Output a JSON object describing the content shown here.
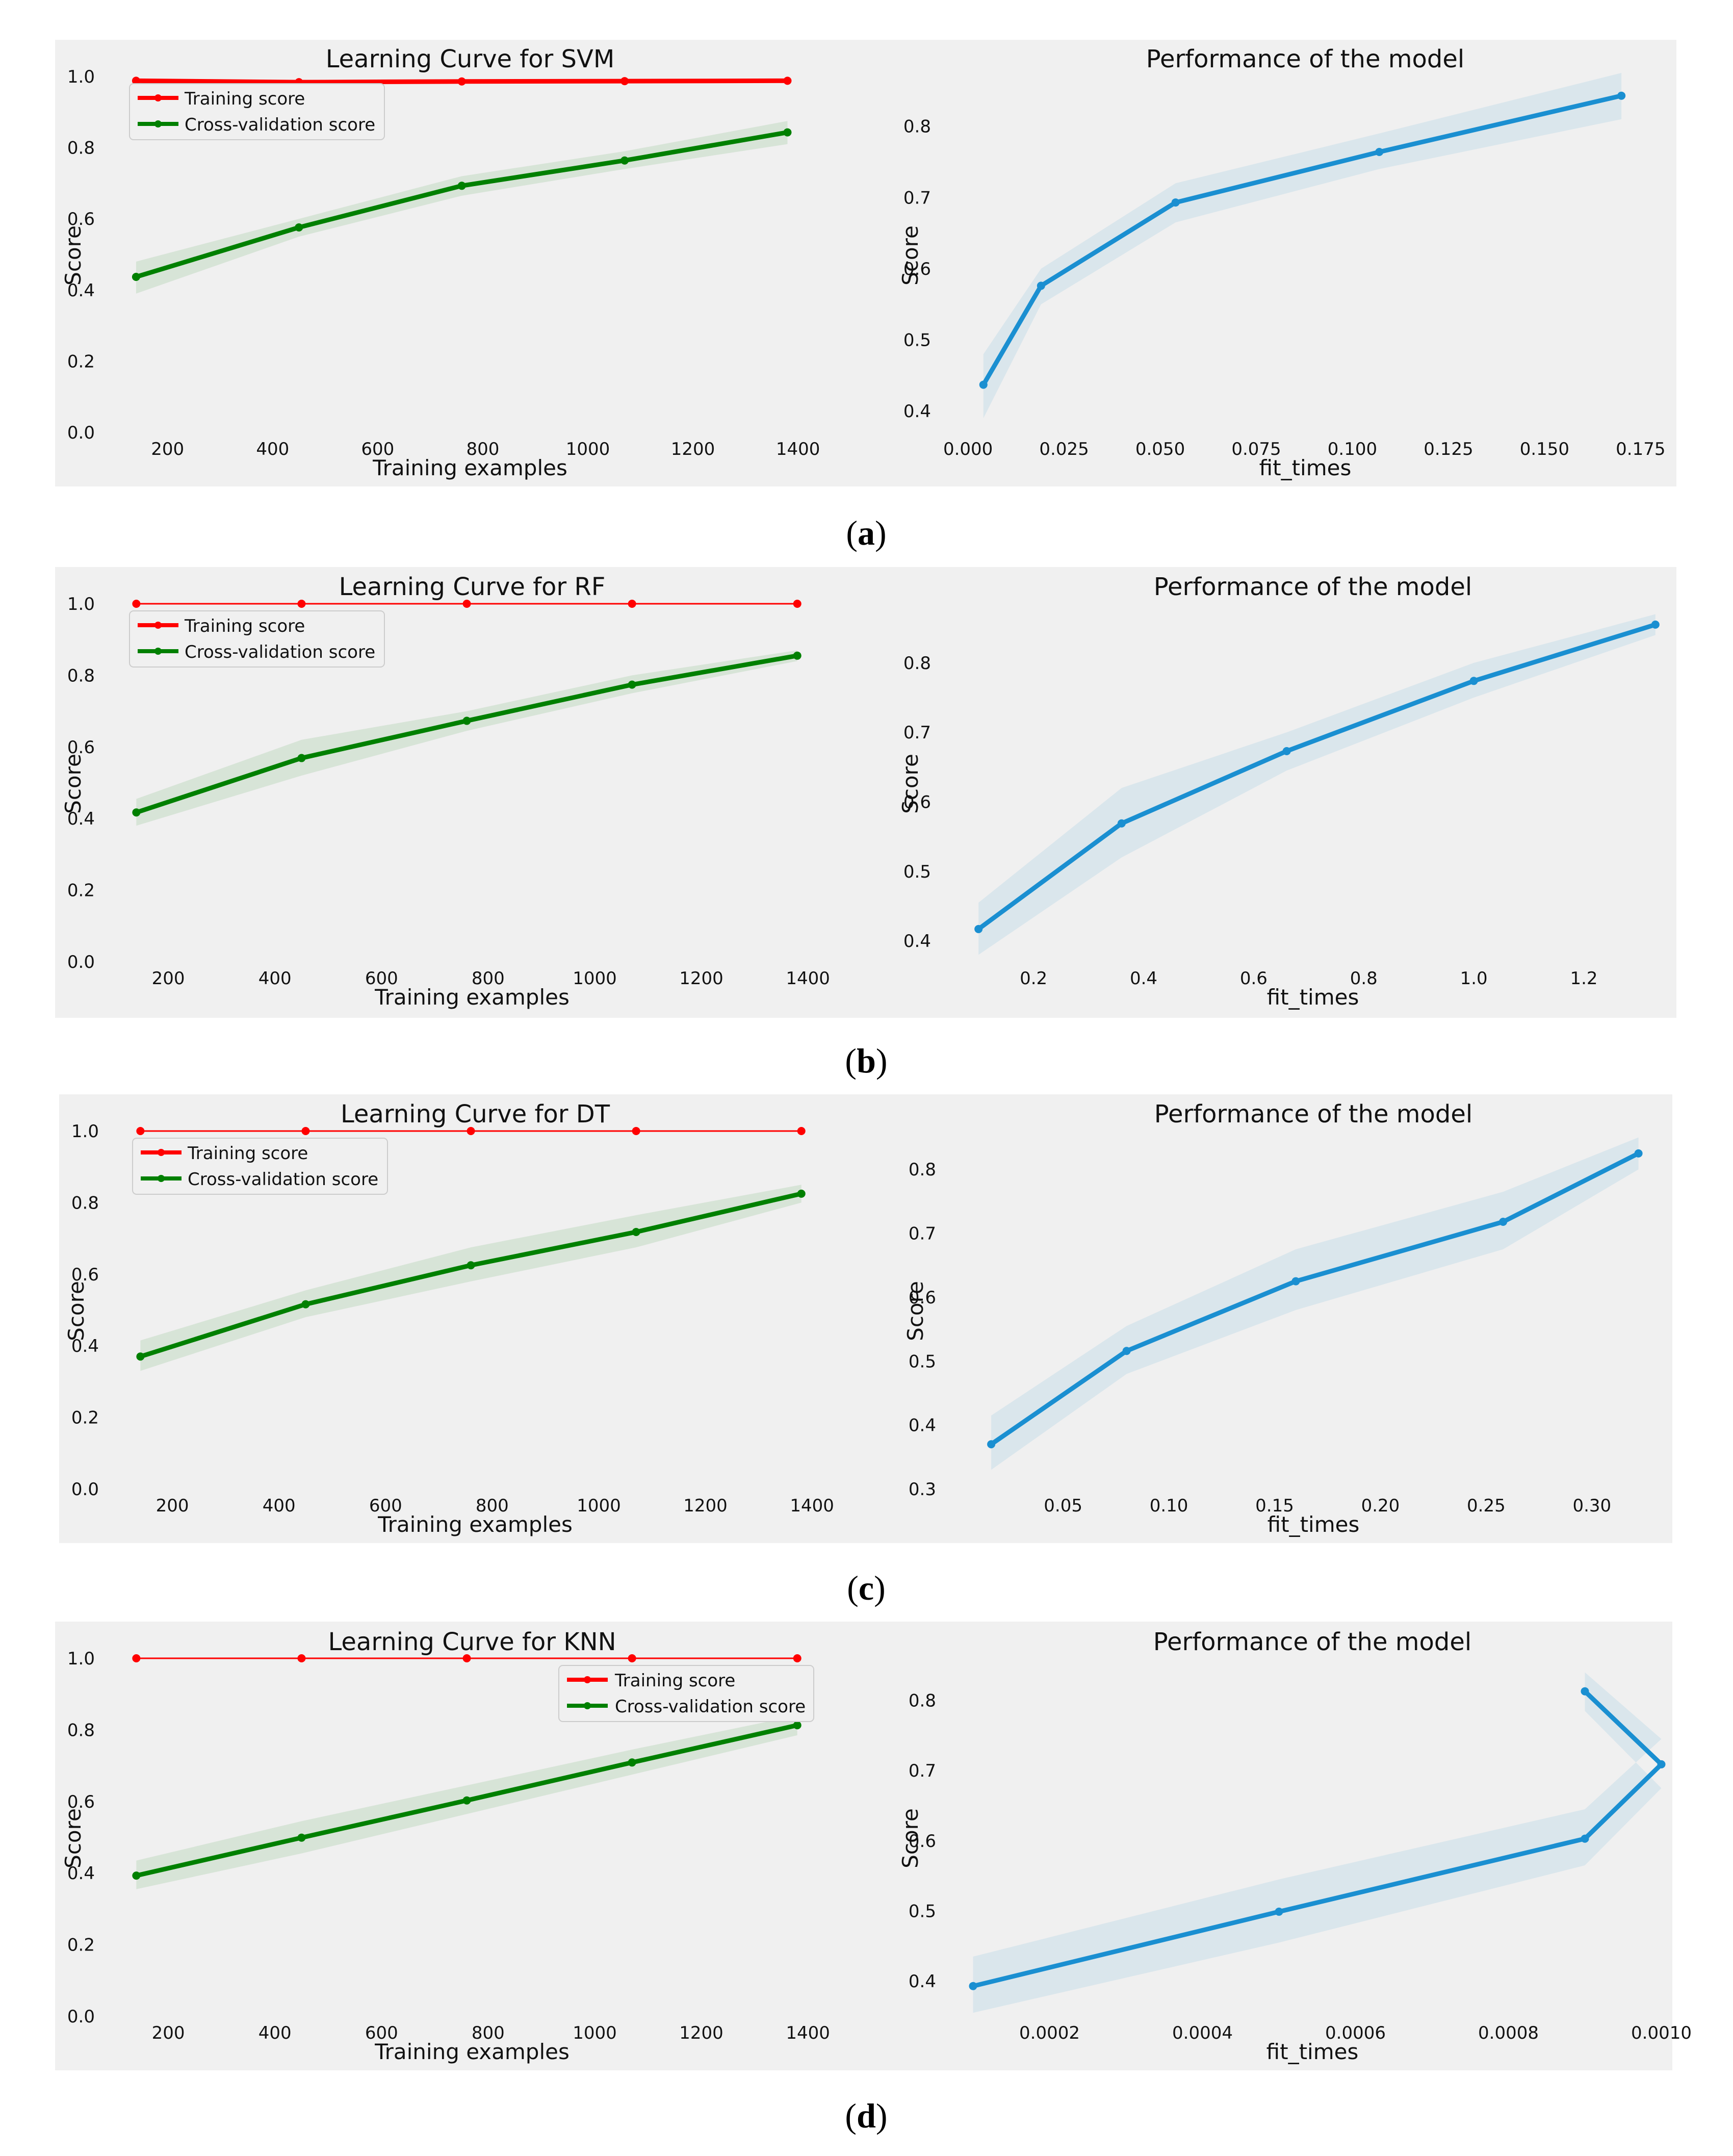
{
  "colors": {
    "panel_bg": "#f0f0f0",
    "training": "#ff0000",
    "cv": "#008000",
    "perf": "#1a8fd1",
    "cv_band": "#008000",
    "perf_band": "#1a8fd1"
  },
  "panels": [
    {
      "caption": "a",
      "left": {
        "title": "Learning Curve for SVM",
        "xlabel": "Training examples",
        "ylabel": "Score",
        "legend": [
          "Training score",
          "Cross-validation score"
        ],
        "legend_position": "top-left"
      },
      "right": {
        "title": "Performance of the model",
        "xlabel": "fit_times",
        "ylabel": "Score"
      }
    },
    {
      "caption": "b",
      "left": {
        "title": "Learning Curve for RF",
        "xlabel": "Training examples",
        "ylabel": "Score",
        "legend": [
          "Training score",
          "Cross-validation score"
        ],
        "legend_position": "top-left"
      },
      "right": {
        "title": "Performance of the model",
        "xlabel": "fit_times",
        "ylabel": "Score"
      }
    },
    {
      "caption": "c",
      "left": {
        "title": "Learning Curve for DT",
        "xlabel": "Training examples",
        "ylabel": "Score",
        "legend": [
          "Training score",
          "Cross-validation score"
        ],
        "legend_position": "top-left"
      },
      "right": {
        "title": "Performance of the model",
        "xlabel": "fit_times",
        "ylabel": "Score"
      }
    },
    {
      "caption": "d",
      "left": {
        "title": "Learning Curve for KNN",
        "xlabel": "Training examples",
        "ylabel": "Score",
        "legend": [
          "Training score",
          "Cross-validation score"
        ],
        "legend_position": "top-right"
      },
      "right": {
        "title": "Performance of the model",
        "xlabel": "fit_times",
        "ylabel": "Score"
      }
    }
  ],
  "chart_data": [
    {
      "id": "a-left",
      "type": "line",
      "title": "Learning Curve for SVM",
      "xlabel": "Training examples",
      "ylabel": "Score",
      "xlim": [
        110,
        1430
      ],
      "ylim": [
        0.0,
        1.0
      ],
      "xticks": [
        200,
        400,
        600,
        800,
        1000,
        1200,
        1400
      ],
      "xtick_labels": [
        "200",
        "400",
        "600",
        "800",
        "1000",
        "1200",
        "1400"
      ],
      "yticks": [
        0.0,
        0.2,
        0.4,
        0.6,
        0.8,
        1.0
      ],
      "ytick_labels": [
        "0.0",
        "0.2",
        "0.4",
        "0.6",
        "0.8",
        "1.0"
      ],
      "grid": false,
      "series": [
        {
          "name": "Training score",
          "color": "red",
          "width": "thick",
          "x": [
            140,
            450,
            760,
            1070,
            1380
          ],
          "y": [
            0.988,
            0.984,
            0.986,
            0.987,
            0.988
          ],
          "lower": [
            0.985,
            0.98,
            0.982,
            0.983,
            0.985
          ],
          "upper": [
            0.992,
            0.988,
            0.99,
            0.991,
            0.992
          ]
        },
        {
          "name": "Cross-validation score",
          "color": "green",
          "width": "thick",
          "x": [
            140,
            450,
            760,
            1070,
            1380
          ],
          "y": [
            0.437,
            0.576,
            0.693,
            0.764,
            0.843
          ],
          "lower": [
            0.39,
            0.55,
            0.665,
            0.74,
            0.81
          ],
          "upper": [
            0.48,
            0.6,
            0.72,
            0.79,
            0.875
          ]
        }
      ]
    },
    {
      "id": "a-right",
      "type": "line",
      "title": "Performance of the model",
      "xlabel": "fit_times",
      "ylabel": "Score",
      "xlim": [
        -0.003,
        0.179
      ],
      "ylim": [
        0.37,
        0.87
      ],
      "xticks": [
        0.0,
        0.025,
        0.05,
        0.075,
        0.1,
        0.125,
        0.15,
        0.175
      ],
      "xtick_labels": [
        "0.000",
        "0.025",
        "0.050",
        "0.075",
        "0.100",
        "0.125",
        "0.150",
        "0.175"
      ],
      "yticks": [
        0.4,
        0.5,
        0.6,
        0.7,
        0.8
      ],
      "ytick_labels": [
        "0.4",
        "0.5",
        "0.6",
        "0.7",
        "0.8"
      ],
      "grid": false,
      "series": [
        {
          "name": "Score",
          "color": "blue",
          "width": "thick",
          "x": [
            0.004,
            0.019,
            0.054,
            0.107,
            0.17
          ],
          "y": [
            0.437,
            0.576,
            0.693,
            0.764,
            0.843
          ],
          "lower": [
            0.39,
            0.55,
            0.665,
            0.74,
            0.81
          ],
          "upper": [
            0.48,
            0.6,
            0.72,
            0.79,
            0.875
          ]
        }
      ]
    },
    {
      "id": "b-left",
      "type": "line",
      "title": "Learning Curve for RF",
      "xlabel": "Training examples",
      "ylabel": "Score",
      "xlim": [
        110,
        1430
      ],
      "ylim": [
        0.0,
        1.0
      ],
      "xticks": [
        200,
        400,
        600,
        800,
        1000,
        1200,
        1400
      ],
      "xtick_labels": [
        "200",
        "400",
        "600",
        "800",
        "1000",
        "1200",
        "1400"
      ],
      "yticks": [
        0.0,
        0.2,
        0.4,
        0.6,
        0.8,
        1.0
      ],
      "ytick_labels": [
        "0.0",
        "0.2",
        "0.4",
        "0.6",
        "0.8",
        "1.0"
      ],
      "grid": false,
      "series": [
        {
          "name": "Training score",
          "color": "red",
          "width": "thin",
          "x": [
            140,
            450,
            760,
            1070,
            1380
          ],
          "y": [
            1.0,
            1.0,
            1.0,
            1.0,
            1.0
          ],
          "lower": [
            1.0,
            1.0,
            1.0,
            1.0,
            1.0
          ],
          "upper": [
            1.0,
            1.0,
            1.0,
            1.0,
            1.0
          ]
        },
        {
          "name": "Cross-validation score",
          "color": "green",
          "width": "thick",
          "x": [
            140,
            450,
            760,
            1070,
            1380
          ],
          "y": [
            0.417,
            0.569,
            0.673,
            0.774,
            0.855
          ],
          "lower": [
            0.38,
            0.52,
            0.645,
            0.75,
            0.84
          ],
          "upper": [
            0.455,
            0.62,
            0.7,
            0.8,
            0.87
          ]
        }
      ]
    },
    {
      "id": "b-right",
      "type": "line",
      "title": "Performance of the model",
      "xlabel": "fit_times",
      "ylabel": "Score",
      "xlim": [
        0.06,
        1.37
      ],
      "ylim": [
        0.37,
        0.885
      ],
      "xticks": [
        0.2,
        0.4,
        0.6,
        0.8,
        1.0,
        1.2
      ],
      "xtick_labels": [
        "0.2",
        "0.4",
        "0.6",
        "0.8",
        "1.0",
        "1.2"
      ],
      "yticks": [
        0.4,
        0.5,
        0.6,
        0.7,
        0.8
      ],
      "ytick_labels": [
        "0.4",
        "0.5",
        "0.6",
        "0.7",
        "0.8"
      ],
      "grid": false,
      "series": [
        {
          "name": "Score",
          "color": "blue",
          "width": "thick",
          "x": [
            0.1,
            0.36,
            0.66,
            1.0,
            1.33
          ],
          "y": [
            0.417,
            0.569,
            0.673,
            0.774,
            0.855
          ],
          "lower": [
            0.38,
            0.52,
            0.645,
            0.75,
            0.84
          ],
          "upper": [
            0.455,
            0.62,
            0.7,
            0.8,
            0.87
          ]
        }
      ]
    },
    {
      "id": "c-left",
      "type": "line",
      "title": "Learning Curve for DT",
      "xlabel": "Training examples",
      "ylabel": "Score",
      "xlim": [
        110,
        1430
      ],
      "ylim": [
        0.0,
        1.0
      ],
      "xticks": [
        200,
        400,
        600,
        800,
        1000,
        1200,
        1400
      ],
      "xtick_labels": [
        "200",
        "400",
        "600",
        "800",
        "1000",
        "1200",
        "1400"
      ],
      "yticks": [
        0.0,
        0.2,
        0.4,
        0.6,
        0.8,
        1.0
      ],
      "ytick_labels": [
        "0.0",
        "0.2",
        "0.4",
        "0.6",
        "0.8",
        "1.0"
      ],
      "grid": false,
      "series": [
        {
          "name": "Training score",
          "color": "red",
          "width": "thin",
          "x": [
            140,
            450,
            760,
            1070,
            1380
          ],
          "y": [
            1.0,
            1.0,
            1.0,
            1.0,
            1.0
          ],
          "lower": [
            1.0,
            1.0,
            1.0,
            1.0,
            1.0
          ],
          "upper": [
            1.0,
            1.0,
            1.0,
            1.0,
            1.0
          ]
        },
        {
          "name": "Cross-validation score",
          "color": "green",
          "width": "thick",
          "x": [
            140,
            450,
            760,
            1070,
            1380
          ],
          "y": [
            0.37,
            0.516,
            0.625,
            0.718,
            0.825
          ],
          "lower": [
            0.33,
            0.48,
            0.58,
            0.675,
            0.8
          ],
          "upper": [
            0.415,
            0.555,
            0.675,
            0.765,
            0.85
          ]
        }
      ]
    },
    {
      "id": "c-right",
      "type": "line",
      "title": "Performance of the model",
      "xlabel": "fit_times",
      "ylabel": "Score",
      "xlim": [
        0.002,
        0.338
      ],
      "ylim": [
        0.3,
        0.86
      ],
      "xticks": [
        0.05,
        0.1,
        0.15,
        0.2,
        0.25,
        0.3
      ],
      "xtick_labels": [
        "0.05",
        "0.10",
        "0.15",
        "0.20",
        "0.25",
        "0.30"
      ],
      "yticks": [
        0.3,
        0.4,
        0.5,
        0.6,
        0.7,
        0.8
      ],
      "ytick_labels": [
        "0.3",
        "0.4",
        "0.5",
        "0.6",
        "0.7",
        "0.8"
      ],
      "grid": false,
      "series": [
        {
          "name": "Score",
          "color": "blue",
          "width": "thick",
          "x": [
            0.016,
            0.08,
            0.16,
            0.258,
            0.322
          ],
          "y": [
            0.37,
            0.516,
            0.625,
            0.718,
            0.825
          ],
          "lower": [
            0.33,
            0.48,
            0.58,
            0.675,
            0.8
          ],
          "upper": [
            0.415,
            0.555,
            0.675,
            0.765,
            0.85
          ]
        }
      ]
    },
    {
      "id": "d-left",
      "type": "line",
      "title": "Learning Curve for KNN",
      "xlabel": "Training examples",
      "ylabel": "Score",
      "xlim": [
        110,
        1430
      ],
      "ylim": [
        0.0,
        1.0
      ],
      "xticks": [
        200,
        400,
        600,
        800,
        1000,
        1200,
        1400
      ],
      "xtick_labels": [
        "200",
        "400",
        "600",
        "800",
        "1000",
        "1200",
        "1400"
      ],
      "yticks": [
        0.0,
        0.2,
        0.4,
        0.6,
        0.8,
        1.0
      ],
      "ytick_labels": [
        "0.0",
        "0.2",
        "0.4",
        "0.6",
        "0.8",
        "1.0"
      ],
      "grid": false,
      "series": [
        {
          "name": "Training score",
          "color": "red",
          "width": "thin",
          "x": [
            140,
            450,
            760,
            1070,
            1380
          ],
          "y": [
            1.0,
            1.0,
            1.0,
            1.0,
            1.0
          ],
          "lower": [
            1.0,
            1.0,
            1.0,
            1.0,
            1.0
          ],
          "upper": [
            1.0,
            1.0,
            1.0,
            1.0,
            1.0
          ]
        },
        {
          "name": "Cross-validation score",
          "color": "green",
          "width": "thick",
          "x": [
            140,
            450,
            760,
            1070,
            1380
          ],
          "y": [
            0.393,
            0.499,
            0.603,
            0.709,
            0.813
          ],
          "lower": [
            0.355,
            0.455,
            0.565,
            0.675,
            0.785
          ],
          "upper": [
            0.435,
            0.545,
            0.645,
            0.745,
            0.84
          ]
        }
      ]
    },
    {
      "id": "d-right",
      "type": "line",
      "title": "Performance of the model",
      "xlabel": "fit_times",
      "ylabel": "Score",
      "xlim": [
        8.5e-05,
        0.001005
      ],
      "ylim": [
        0.35,
        0.86
      ],
      "xticks": [
        0.0002,
        0.0004,
        0.0006,
        0.0008,
        0.001
      ],
      "xtick_labels": [
        "0.0002",
        "0.0004",
        "0.0006",
        "0.0008",
        "0.0010"
      ],
      "yticks": [
        0.4,
        0.5,
        0.6,
        0.7,
        0.8
      ],
      "ytick_labels": [
        "0.4",
        "0.5",
        "0.6",
        "0.7",
        "0.8"
      ],
      "grid": false,
      "series": [
        {
          "name": "Score",
          "color": "blue",
          "width": "thick",
          "x": [
            0.0001,
            0.0005,
            0.0009,
            0.001,
            0.0009
          ],
          "y": [
            0.393,
            0.499,
            0.603,
            0.709,
            0.813
          ],
          "lower": [
            0.355,
            0.455,
            0.565,
            0.675,
            0.785
          ],
          "upper": [
            0.435,
            0.545,
            0.645,
            0.745,
            0.84
          ]
        }
      ]
    }
  ]
}
